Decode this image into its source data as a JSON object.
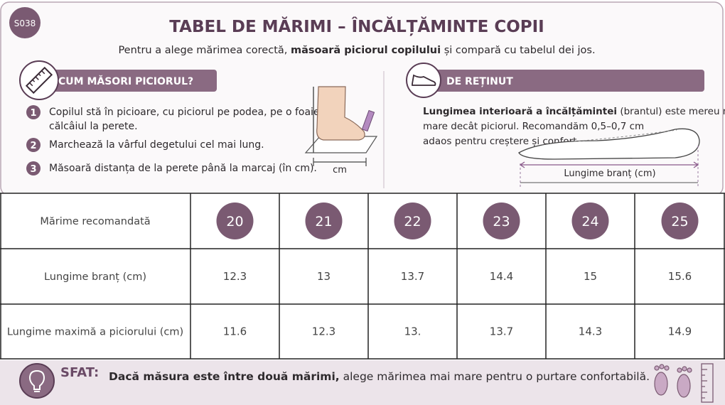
{
  "badge": "S038",
  "title": "TABEL DE MĂRIMI – ÎNCĂLȚĂMINTE COPII",
  "subtitle": [
    {
      "text": "Pentru a alege mărimea corectă, ",
      "bold": false
    },
    {
      "text": "măsoară piciorul copilului",
      "bold": true
    },
    {
      "text": " și compară cu tabelul dei jos.",
      "bold": false
    }
  ],
  "measure": {
    "heading": "CUM MĂSORI PICIORUL?",
    "steps": [
      {
        "number": "1",
        "lines": [
          "Copilul stă în picioare, cu piciorul pe podea, pe o foaie,",
          "călcâiul la perete."
        ]
      },
      {
        "number": "2",
        "lines": [
          "Marchează la vârful degetului cel mai lung."
        ]
      },
      {
        "number": "3",
        "lines": [
          "Măsoară distanța de la perete până la marcaj (în cm)."
        ]
      }
    ],
    "diagram_label": "cm"
  },
  "note": {
    "heading": "DE REȚINUT",
    "lines": [
      [
        {
          "text": "Lungimea interioară a încălțămintei",
          "bold": true
        },
        {
          "text": " (brantul) este mereu mai",
          "bold": false
        }
      ],
      [
        {
          "text": "mare decât piciorul. Recomandăm 0,5–0,7 cm",
          "bold": false
        }
      ],
      [
        {
          "text": "adaos pentru creștere și confort.",
          "bold": false
        }
      ]
    ],
    "diagram_label": "Lungime branț (cm)"
  },
  "table": {
    "rows": [
      [
        "Mărime recomandată",
        "20",
        "21",
        "22",
        "23",
        "24",
        "25"
      ],
      [
        "Lungime branț (cm)",
        "12.3",
        "13",
        "13.7",
        "14.4",
        "15",
        "15.6"
      ],
      [
        "Lungime maximă a piciorului (cm)",
        "11.6",
        "12.3",
        "13.",
        "13.7",
        "14.3",
        "14.9"
      ]
    ]
  },
  "tip": {
    "label": "SFAT:",
    "parts": [
      {
        "text": "Dacă măsura este între două mărimi,",
        "bold": true
      },
      {
        "text": " alege mărimea mai mare pentru o purtare confortabilă.",
        "bold": false
      }
    ]
  }
}
